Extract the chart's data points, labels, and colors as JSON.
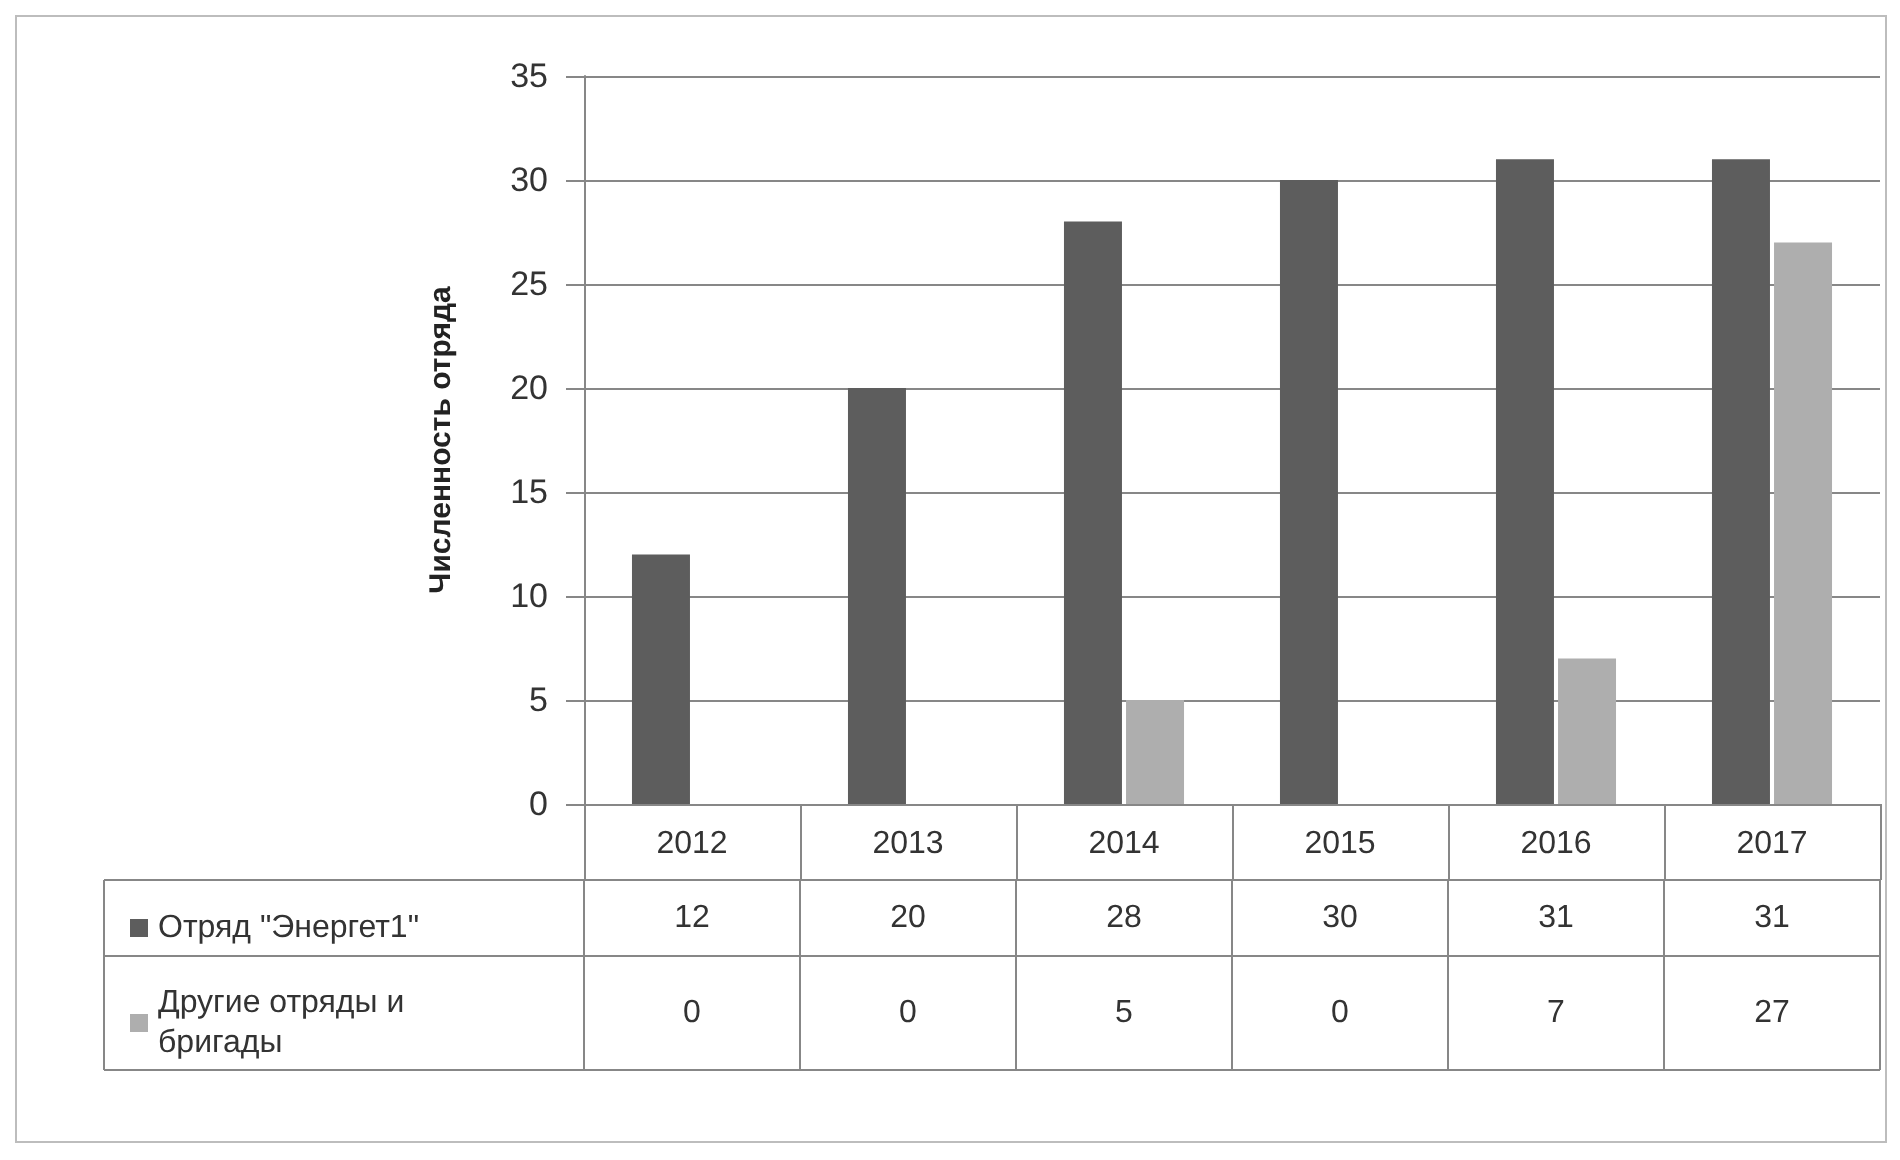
{
  "chart_data": {
    "type": "bar",
    "ylabel": "Численность отряда",
    "categories": [
      "2012",
      "2013",
      "2014",
      "2015",
      "2016",
      "2017"
    ],
    "series": [
      {
        "name": "Отряд \"Энергет1\"",
        "color": "#5d5d5d",
        "values": [
          12,
          20,
          28,
          30,
          31,
          31
        ]
      },
      {
        "name": "Другие отряды и бригады",
        "color": "#aeaeae",
        "values": [
          0,
          0,
          5,
          0,
          7,
          27
        ]
      }
    ],
    "ylim": [
      0,
      35
    ],
    "yticks": [
      0,
      5,
      10,
      15,
      20,
      25,
      30,
      35
    ],
    "grid": "y",
    "legend": "bottom left",
    "data_labels": true
  }
}
